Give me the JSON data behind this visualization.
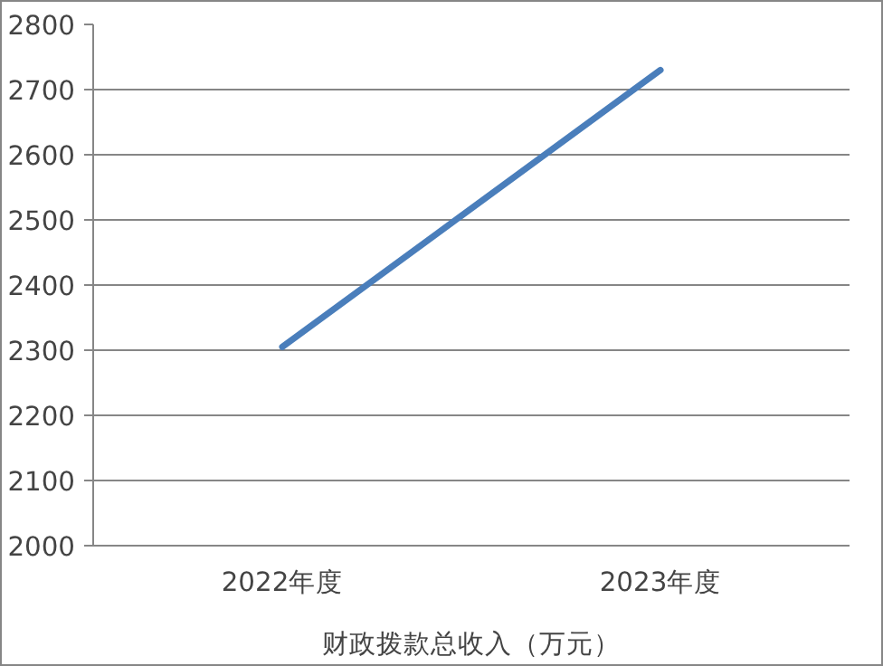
{
  "chart_data": {
    "type": "line",
    "categories": [
      "2022年度",
      "2023年度"
    ],
    "xlabel": "财政拨款总收入（万元）",
    "series": [
      {
        "color": "#4a7ebb",
        "values": [
          2305,
          2730
        ]
      }
    ],
    "ylim": [
      2000,
      2800
    ],
    "yticks": [
      2000,
      2100,
      2200,
      2300,
      2400,
      2500,
      2600,
      2700,
      2800
    ],
    "grid": "y",
    "marker": "none",
    "line_style": "solid"
  }
}
